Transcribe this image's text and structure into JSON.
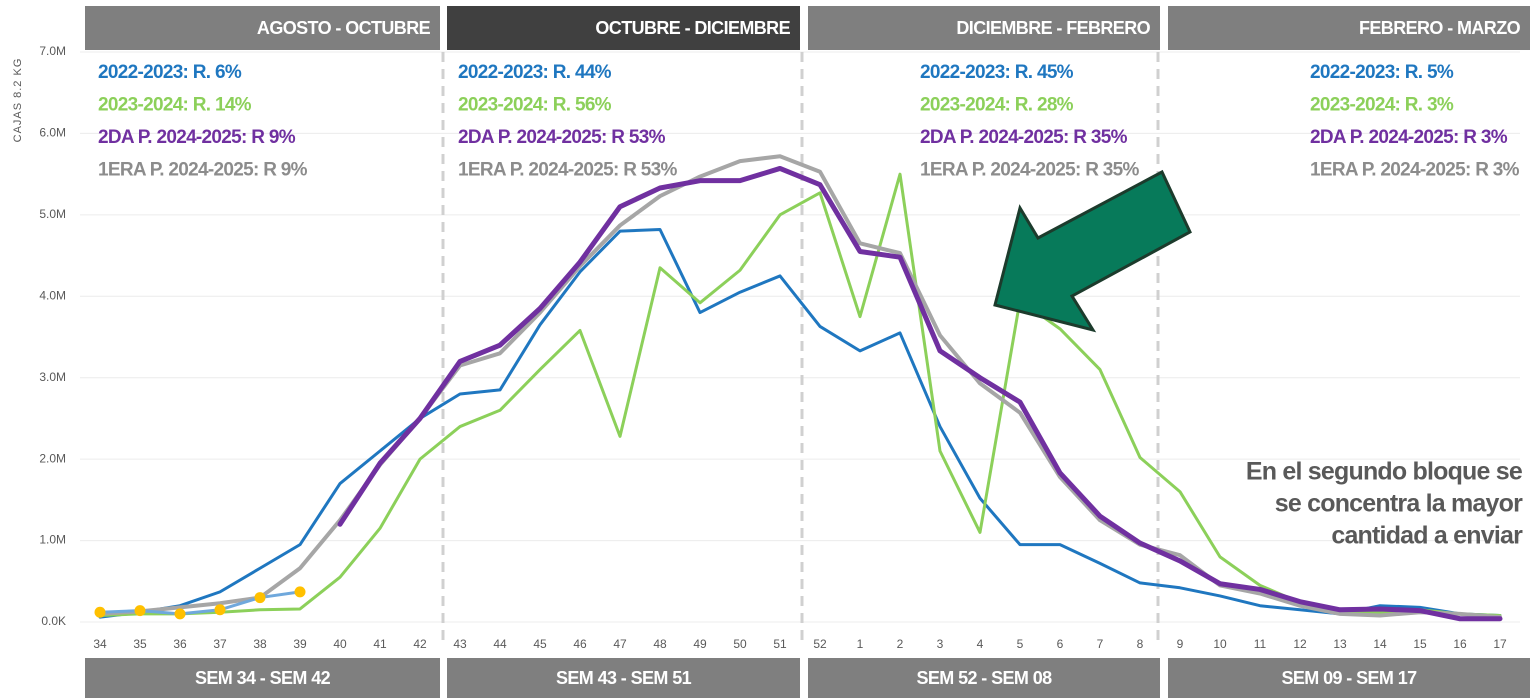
{
  "chart_data": {
    "type": "line",
    "y_axis_label": "CAJAS 8.2 KG",
    "categories": [
      "34",
      "35",
      "36",
      "37",
      "38",
      "39",
      "40",
      "41",
      "42",
      "43",
      "44",
      "45",
      "46",
      "47",
      "48",
      "49",
      "50",
      "51",
      "52",
      "1",
      "2",
      "3",
      "4",
      "5",
      "6",
      "7",
      "8",
      "9",
      "10",
      "11",
      "12",
      "13",
      "14",
      "15",
      "16",
      "17"
    ],
    "ylim": [
      0,
      7000000
    ],
    "yticks": [
      {
        "value": 0,
        "label": "0.0K"
      },
      {
        "value": 1000000,
        "label": "1.0M"
      },
      {
        "value": 2000000,
        "label": "2.0M"
      },
      {
        "value": 3000000,
        "label": "3.0M"
      },
      {
        "value": 4000000,
        "label": "4.0M"
      },
      {
        "value": 5000000,
        "label": "5.0M"
      },
      {
        "value": 6000000,
        "label": "6.0M"
      },
      {
        "value": 7000000,
        "label": "7.0M"
      }
    ],
    "grid": true,
    "series": [
      {
        "color": "#1f77c0",
        "width": 3,
        "values": [
          60000,
          120000,
          200000,
          370000,
          660000,
          950000,
          1700000,
          2100000,
          2500000,
          2800000,
          2850000,
          3650000,
          4300000,
          4800000,
          4820000,
          3800000,
          4050000,
          4250000,
          3630000,
          3330000,
          3550000,
          2400000,
          1520000,
          950000,
          950000,
          720000,
          480000,
          420000,
          320000,
          200000,
          150000,
          100000,
          200000,
          180000,
          100000,
          80000
        ]
      },
      {
        "color": "#8cd05a",
        "width": 3,
        "values": [
          80000,
          100000,
          100000,
          120000,
          150000,
          160000,
          550000,
          1150000,
          2000000,
          2400000,
          2600000,
          3100000,
          3580000,
          2280000,
          4350000,
          3920000,
          4320000,
          5000000,
          5270000,
          3750000,
          5500000,
          2100000,
          1100000,
          3950000,
          3600000,
          3100000,
          2020000,
          1600000,
          800000,
          450000,
          240000,
          120000,
          120000,
          150000,
          100000,
          80000
        ]
      },
      {
        "color": "#a6a6a6",
        "width": 4,
        "values": [
          100000,
          130000,
          180000,
          230000,
          300000,
          660000,
          1250000,
          1930000,
          2500000,
          3150000,
          3300000,
          3800000,
          4370000,
          4870000,
          5230000,
          5470000,
          5660000,
          5720000,
          5530000,
          4650000,
          4530000,
          3520000,
          2930000,
          2570000,
          1780000,
          1250000,
          950000,
          820000,
          450000,
          350000,
          200000,
          100000,
          80000,
          120000,
          100000,
          60000
        ]
      },
      {
        "color": "#7030a0",
        "width": 5,
        "values": [
          null,
          null,
          null,
          null,
          null,
          null,
          1200000,
          1950000,
          2500000,
          3200000,
          3400000,
          3850000,
          4420000,
          5100000,
          5330000,
          5420000,
          5420000,
          5570000,
          5370000,
          4550000,
          4480000,
          3330000,
          3000000,
          2700000,
          1830000,
          1300000,
          970000,
          750000,
          470000,
          400000,
          250000,
          150000,
          160000,
          140000,
          40000,
          40000
        ]
      },
      {
        "color": "#6fa8dc",
        "width": 3,
        "marker_color": "#ffc000",
        "values": [
          120000,
          140000,
          100000,
          150000,
          300000,
          370000,
          null,
          null,
          null,
          null,
          null,
          null,
          null,
          null,
          null,
          null,
          null,
          null,
          null,
          null,
          null,
          null,
          null,
          null,
          null,
          null,
          null,
          null,
          null,
          null,
          null,
          null,
          null,
          null,
          null,
          null
        ]
      }
    ],
    "blocks": [
      {
        "header": "AGOSTO - OCTUBRE",
        "header_color": "#7f7f7f",
        "footer": "SEM 34 - SEM 42",
        "lines": [
          {
            "text": "2022-2023: R. 6%",
            "color": "#1f77c0"
          },
          {
            "text": "2023-2024: R. 14%",
            "color": "#8cd05a"
          },
          {
            "text": "2DA P. 2024-2025: R 9%",
            "color": "#7030a0"
          },
          {
            "text": "1ERA P. 2024-2025: R 9%",
            "color": "#8c8c8c"
          }
        ]
      },
      {
        "header": "OCTUBRE - DICIEMBRE",
        "header_color": "#404040",
        "footer": "SEM 43 - SEM 51",
        "lines": [
          {
            "text": "2022-2023: R. 44%",
            "color": "#1f77c0"
          },
          {
            "text": "2023-2024: R. 56%",
            "color": "#8cd05a"
          },
          {
            "text": "2DA P. 2024-2025: R 53%",
            "color": "#7030a0"
          },
          {
            "text": "1ERA P. 2024-2025: R 53%",
            "color": "#8c8c8c"
          }
        ]
      },
      {
        "header": "DICIEMBRE - FEBRERO",
        "header_color": "#7f7f7f",
        "footer": "SEM 52 - SEM 08",
        "lines": [
          {
            "text": "2022-2023: R. 45%",
            "color": "#1f77c0"
          },
          {
            "text": "2023-2024: R. 28%",
            "color": "#8cd05a"
          },
          {
            "text": "2DA P. 2024-2025: R 35%",
            "color": "#7030a0"
          },
          {
            "text": "1ERA P. 2024-2025: R 35%",
            "color": "#8c8c8c"
          }
        ]
      },
      {
        "header": "FEBRERO - MARZO",
        "header_color": "#7f7f7f",
        "footer": "SEM 09 - SEM 17",
        "lines": [
          {
            "text": "2022-2023: R. 5%",
            "color": "#1f77c0"
          },
          {
            "text": "2023-2024: R. 3%",
            "color": "#8cd05a"
          },
          {
            "text": "2DA P. 2024-2025: R 3%",
            "color": "#7030a0"
          },
          {
            "text": "1ERA P. 2024-2025: R 3%",
            "color": "#8c8c8c"
          }
        ]
      }
    ],
    "note": [
      "En el segundo bloque se",
      "se concentra la mayor",
      "cantidad a enviar"
    ]
  }
}
